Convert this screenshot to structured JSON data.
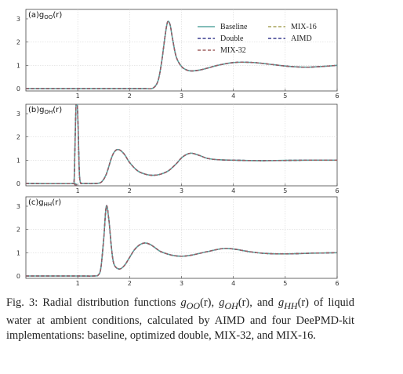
{
  "chart_data": [
    {
      "type": "line",
      "panel_label": "(a)g",
      "panel_label_sub": "OO",
      "panel_label_tail": "(r)",
      "xlim": [
        0,
        6
      ],
      "ylim": [
        0,
        3.2
      ],
      "xticks": [
        "1",
        "2",
        "3",
        "4",
        "5",
        "6"
      ],
      "yticks": [
        "0",
        "1",
        "2",
        "3"
      ],
      "grid": true,
      "legend_position": "upper-right",
      "series": [
        {
          "name": "Baseline",
          "color": "#5aa7a0",
          "dash": "solid"
        },
        {
          "name": "MIX-16",
          "color": "#a8a35a",
          "dash": "dashed"
        },
        {
          "name": "Double",
          "color": "#3b3d8f",
          "dash": "dashed"
        },
        {
          "name": "AIMD",
          "color": "#3b3d8f",
          "dash": "dashed"
        },
        {
          "name": "MIX-32",
          "color": "#a06060",
          "dash": "dashed"
        }
      ],
      "x": [
        0,
        1.0,
        1.5,
        2.0,
        2.3,
        2.45,
        2.55,
        2.62,
        2.68,
        2.73,
        2.78,
        2.83,
        2.9,
        3.0,
        3.1,
        3.2,
        3.35,
        3.5,
        3.7,
        4.0,
        4.3,
        4.5,
        4.8,
        5.1,
        5.4,
        5.7,
        6.0
      ],
      "y": [
        0,
        0,
        0,
        0,
        0,
        0.02,
        0.35,
        1.2,
        2.2,
        2.85,
        2.75,
        2.1,
        1.35,
        0.95,
        0.8,
        0.76,
        0.8,
        0.88,
        1.0,
        1.12,
        1.13,
        1.1,
        1.02,
        0.95,
        0.92,
        0.95,
        1.0
      ]
    },
    {
      "type": "line",
      "panel_label": "(b)g",
      "panel_label_sub": "OH",
      "panel_label_tail": "(r)",
      "xlim": [
        0,
        6
      ],
      "ylim": [
        0,
        3.2
      ],
      "xticks": [
        "1",
        "2",
        "3",
        "4",
        "5",
        "6"
      ],
      "yticks": [
        "0",
        "1",
        "2",
        "3"
      ],
      "grid": true,
      "x": [
        0,
        0.9,
        0.93,
        0.95,
        0.97,
        0.99,
        1.01,
        1.03,
        1.05,
        1.08,
        1.15,
        1.3,
        1.45,
        1.55,
        1.65,
        1.72,
        1.8,
        1.9,
        2.0,
        2.15,
        2.3,
        2.45,
        2.6,
        2.75,
        2.9,
        3.0,
        3.1,
        3.2,
        3.35,
        3.5,
        3.7,
        4.0,
        4.5,
        5.0,
        5.5,
        6.0
      ],
      "y": [
        0,
        0,
        0.1,
        2.0,
        3.5,
        3.5,
        2.2,
        0.5,
        0.05,
        0,
        0,
        0,
        0.05,
        0.4,
        1.1,
        1.4,
        1.45,
        1.25,
        0.9,
        0.55,
        0.4,
        0.35,
        0.4,
        0.55,
        0.85,
        1.1,
        1.25,
        1.3,
        1.2,
        1.08,
        1.02,
        1.0,
        0.98,
        0.99,
        1.0,
        1.0
      ]
    },
    {
      "type": "line",
      "panel_label": "(c)g",
      "panel_label_sub": "HH",
      "panel_label_tail": "(r)",
      "xlim": [
        0,
        6
      ],
      "ylim": [
        0,
        3.2
      ],
      "xticks": [
        "1",
        "2",
        "3",
        "4",
        "5",
        "6"
      ],
      "yticks": [
        "0",
        "1",
        "2",
        "3"
      ],
      "grid": true,
      "x": [
        0,
        1.0,
        1.3,
        1.4,
        1.45,
        1.5,
        1.55,
        1.6,
        1.65,
        1.7,
        1.8,
        1.9,
        2.0,
        2.1,
        2.2,
        2.3,
        2.4,
        2.5,
        2.6,
        2.8,
        3.0,
        3.2,
        3.5,
        3.8,
        4.0,
        4.3,
        4.6,
        5.0,
        5.5,
        6.0
      ],
      "y": [
        0,
        0,
        0,
        0.05,
        0.4,
        1.6,
        3.0,
        2.4,
        1.2,
        0.5,
        0.3,
        0.45,
        0.8,
        1.15,
        1.35,
        1.42,
        1.35,
        1.2,
        1.05,
        0.9,
        0.85,
        0.9,
        1.05,
        1.18,
        1.16,
        1.05,
        0.97,
        0.95,
        0.98,
        1.0
      ]
    }
  ],
  "caption": {
    "part1": "Fig. 3: Radial distribution functions ",
    "sym1": "g",
    "sub1": "OO",
    "r1": "(r)",
    "sep1": ", ",
    "sym2": "g",
    "sub2": "OH",
    "r2": "(r)",
    "sep2": ", and ",
    "sym3": "g",
    "sub3": "HH",
    "r3": "(r)",
    "part2": " of liquid water at ambient conditions, calculated by AIMD and four DeePMD-kit implementations: baseline, optimized double, MIX-32, and MIX-16."
  }
}
